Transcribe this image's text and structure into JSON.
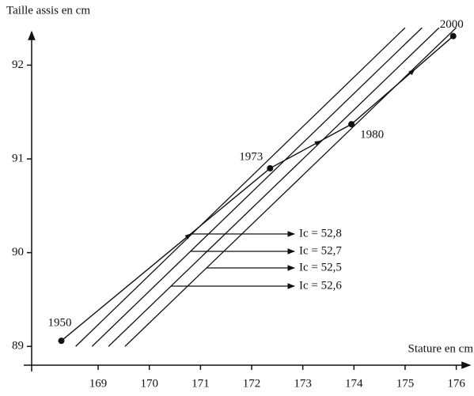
{
  "chart_data": {
    "type": "line",
    "y_label": "Taille assis en cm",
    "x_label": "Stature en cm",
    "x": [
      168.28,
      172.36,
      173.95,
      175.94
    ],
    "values": [
      89.06,
      90.9,
      91.37,
      92.31
    ],
    "point_labels": [
      "1950",
      "1973",
      "1980",
      "2000"
    ],
    "color": "#111111",
    "iso_lines": [
      {
        "label": "Ic = 52,8",
        "value": 52.8
      },
      {
        "label": "Ic = 52,7",
        "value": 52.7
      },
      {
        "label": "Ic = 52,5",
        "value": 52.5
      },
      {
        "label": "Ic = 52,6",
        "value": 52.6
      }
    ],
    "xlim": [
      167.7,
      176.3
    ],
    "xticks": [
      169,
      170,
      171,
      172,
      173,
      174,
      175,
      176
    ],
    "ylim": [
      88.8,
      92.4
    ],
    "yticks": [
      89,
      90,
      91,
      92
    ]
  }
}
